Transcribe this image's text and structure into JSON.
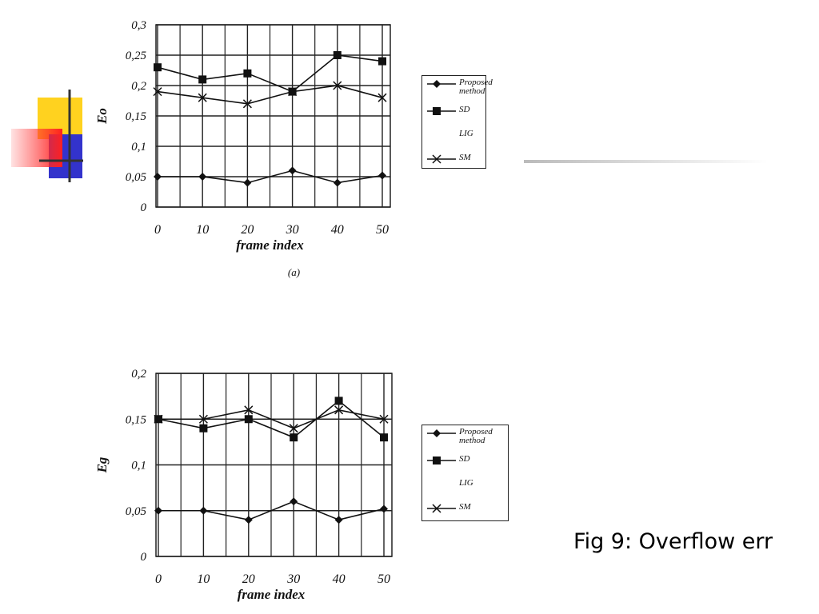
{
  "chart_data": [
    {
      "type": "line",
      "caption": "(a)",
      "xlabel": "frame index",
      "ylabel": "Eo",
      "x": [
        0,
        10,
        20,
        30,
        40,
        50
      ],
      "xlim": [
        0,
        50
      ],
      "xticks": [
        0,
        10,
        20,
        30,
        40,
        50
      ],
      "ylim": [
        0,
        0.3
      ],
      "yticks": [
        0,
        {
          "value": 0.05,
          "label": "0,05"
        },
        {
          "value": 0.1,
          "label": "0,1"
        },
        {
          "value": 0.15,
          "label": "0,15"
        },
        {
          "value": 0.2,
          "label": "0,2"
        },
        {
          "value": 0.25,
          "label": "0,25"
        },
        {
          "value": 0.3,
          "label": "0,3"
        }
      ],
      "grid": true,
      "legend": "right",
      "series": [
        {
          "name": "Proposed method",
          "color": "#111111",
          "marker": "diamond",
          "values": [
            0.05,
            0.05,
            0.04,
            0.06,
            0.04,
            0.052
          ]
        },
        {
          "name": "SD",
          "color": "#111111",
          "marker": "square",
          "values": [
            0.23,
            0.21,
            0.22,
            0.19,
            0.25,
            0.24
          ]
        },
        {
          "name": "LIG",
          "color": "#111111",
          "marker": "none",
          "values": [
            null,
            null,
            null,
            null,
            null,
            null
          ]
        },
        {
          "name": "SM",
          "color": "#111111",
          "marker": "x",
          "values": [
            0.19,
            0.18,
            0.17,
            0.19,
            0.2,
            0.18
          ]
        }
      ]
    },
    {
      "type": "line",
      "xlabel": "frame index",
      "ylabel": "Eg",
      "x": [
        0,
        10,
        20,
        30,
        40,
        50
      ],
      "xlim": [
        0,
        50
      ],
      "xticks": [
        0,
        10,
        20,
        30,
        40,
        50
      ],
      "ylim": [
        0,
        0.2
      ],
      "yticks": [
        0,
        {
          "value": 0.05,
          "label": "0,05"
        },
        {
          "value": 0.1,
          "label": "0,1"
        },
        {
          "value": 0.15,
          "label": "0,15"
        },
        {
          "value": 0.2,
          "label": "0,2"
        }
      ],
      "grid": true,
      "legend": "right",
      "series": [
        {
          "name": "Proposed method",
          "color": "#111111",
          "marker": "diamond",
          "values": [
            0.05,
            0.05,
            0.04,
            0.06,
            0.04,
            0.052
          ]
        },
        {
          "name": "SD",
          "color": "#111111",
          "marker": "square",
          "values": [
            0.15,
            0.14,
            0.15,
            0.13,
            0.17,
            0.13
          ]
        },
        {
          "name": "LIG",
          "color": "#111111",
          "marker": "none",
          "values": [
            null,
            null,
            null,
            null,
            null,
            null
          ]
        },
        {
          "name": "SM",
          "color": "#111111",
          "marker": "x",
          "values": [
            0.15,
            0.15,
            0.16,
            0.14,
            0.16,
            0.15
          ]
        }
      ]
    }
  ],
  "slide": {
    "caption": "Fig 9: Overflow err"
  }
}
